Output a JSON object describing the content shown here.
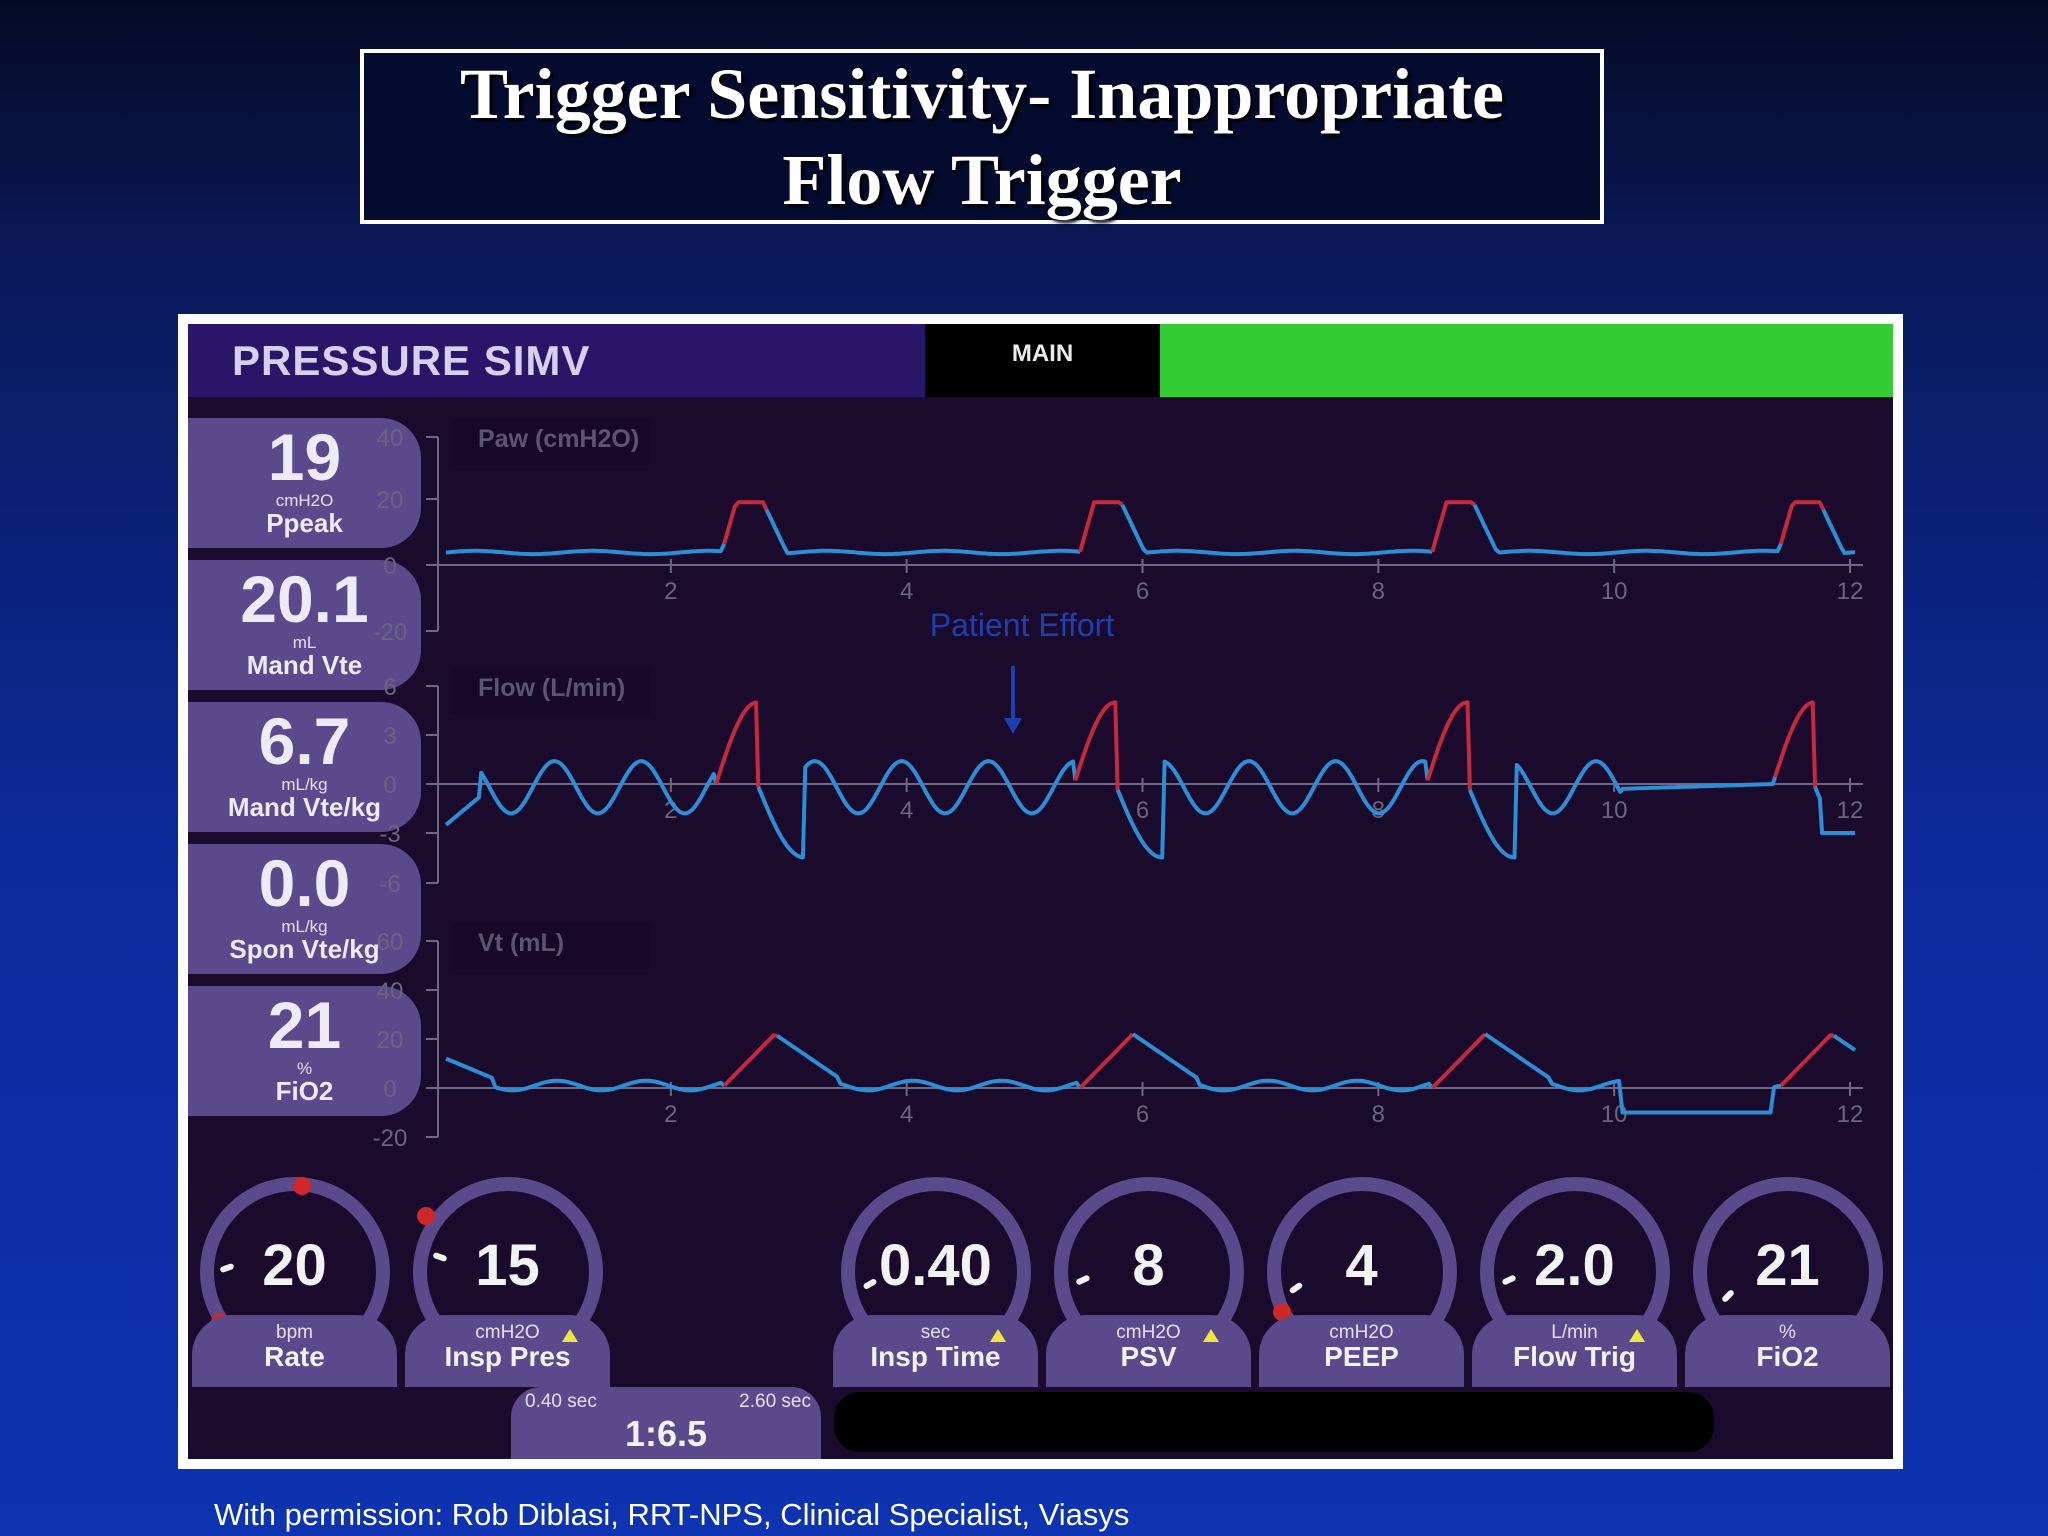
{
  "slide": {
    "title_line1": "Trigger Sensitivity- Inappropriate",
    "title_line2": "Flow Trigger",
    "credit": "With permission: Rob Diblasi, RRT-NPS, Clinical Specialist, Viasys"
  },
  "ventilator": {
    "mode": "PRESSURE SIMV",
    "tab": "MAIN",
    "status_color": "#33cc33",
    "measurements": [
      {
        "value": "19",
        "unit": "cmH2O",
        "label": "Ppeak"
      },
      {
        "value": "20.1",
        "unit": "mL",
        "label": "Mand Vte"
      },
      {
        "value": "6.7",
        "unit": "mL/kg",
        "label": "Mand Vte/kg"
      },
      {
        "value": "0.0",
        "unit": "mL/kg",
        "label": "Spon Vte/kg"
      },
      {
        "value": "21",
        "unit": "%",
        "label": "FiO2"
      }
    ],
    "controls": [
      {
        "value": "20",
        "unit": "bpm",
        "label": "Rate"
      },
      {
        "value": "15",
        "unit": "cmH2O",
        "label": "Insp Pres"
      },
      {
        "value": "0.40",
        "unit": "sec",
        "label": "Insp Time"
      },
      {
        "value": "8",
        "unit": "cmH2O",
        "label": "PSV"
      },
      {
        "value": "4",
        "unit": "cmH2O",
        "label": "PEEP"
      },
      {
        "value": "2.0",
        "unit": "L/min",
        "label": "Flow Trig"
      },
      {
        "value": "21",
        "unit": "%",
        "label": "FiO2"
      }
    ],
    "ie": {
      "insp": "0.40 sec",
      "exp": "2.60 sec",
      "ratio": "1:6.5"
    },
    "annotation": "Patient Effort",
    "colors": {
      "mandatory": "#c8283c",
      "spontaneous": "#2a8fd6",
      "annotation": "#1f3fae"
    }
  },
  "chart_data": [
    {
      "type": "line",
      "title": "Paw (cmH2O)",
      "x_ticks": [
        2,
        4,
        6,
        8,
        10,
        12
      ],
      "y_ticks": [
        40,
        20,
        0,
        -20
      ],
      "xlim": [
        0,
        12
      ],
      "ylim": [
        -20,
        40
      ],
      "breaths_start": [
        2.35,
        5.4,
        8.4,
        11.35
      ],
      "baseline": 4,
      "peak": 19
    },
    {
      "type": "line",
      "title": "Flow (L/min)",
      "x_ticks": [
        2,
        4,
        6,
        8,
        10,
        12
      ],
      "y_ticks": [
        6,
        3,
        0,
        -3,
        -6
      ],
      "xlim": [
        0,
        12
      ],
      "ylim": [
        -6,
        6
      ]
    },
    {
      "type": "line",
      "title": "Vt (mL)",
      "x_ticks": [
        2,
        4,
        6,
        8,
        10,
        12
      ],
      "y_ticks": [
        60,
        40,
        20,
        0,
        -20
      ],
      "xlim": [
        0,
        12
      ],
      "ylim": [
        -20,
        60
      ]
    }
  ]
}
